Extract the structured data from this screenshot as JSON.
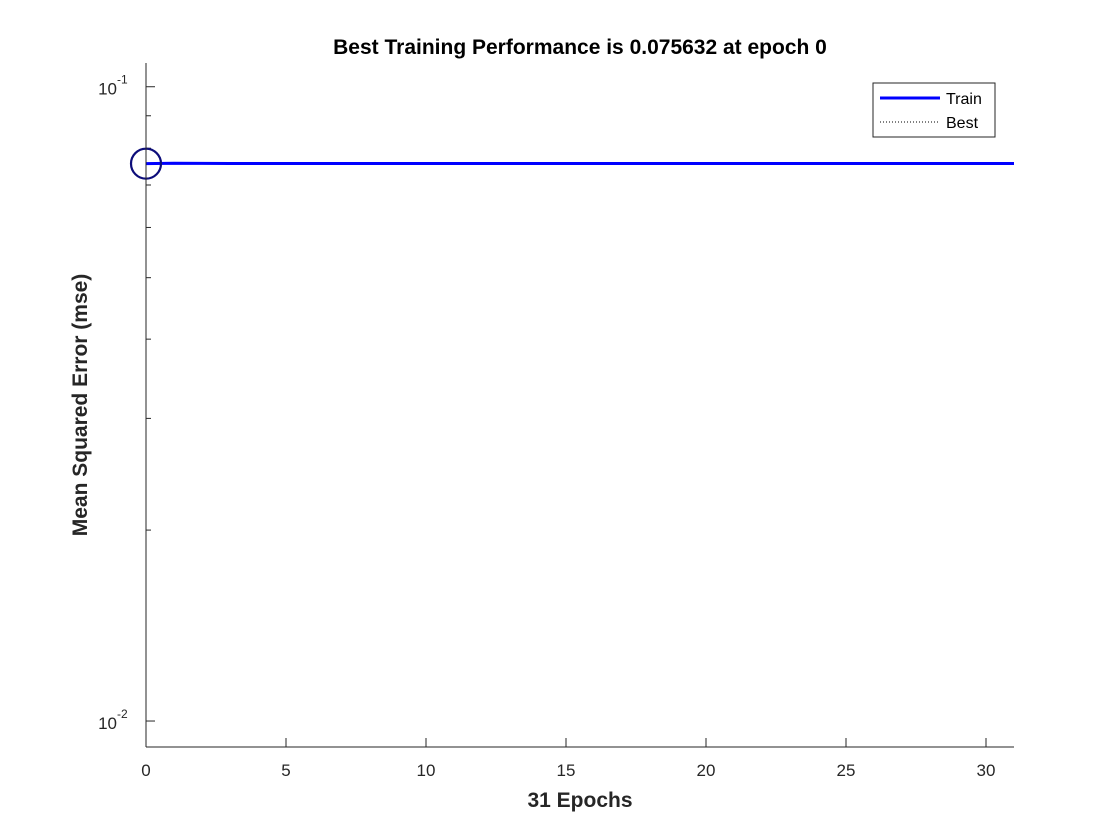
{
  "chart_data": {
    "type": "line",
    "title": "Best Training Performance is 0.075632 at epoch 0",
    "xlabel": "31 Epochs",
    "ylabel": "Mean Squared Error  (mse)",
    "xlim": [
      0,
      31
    ],
    "ylim": [
      0.0091,
      0.109
    ],
    "yscale": "log",
    "xticks": [
      0,
      5,
      10,
      15,
      20,
      25,
      30
    ],
    "xtick_labels": [
      "0",
      "5",
      "10",
      "15",
      "20",
      "25",
      "30"
    ],
    "yticks": [
      {
        "value": 0.1,
        "base": "10",
        "exp": "-1"
      },
      {
        "value": 0.01,
        "base": "10",
        "exp": "-2"
      }
    ],
    "grid": false,
    "legend_position": "top-right",
    "series": [
      {
        "name": "Train",
        "color": "#0000ff",
        "style": "solid",
        "x": [
          0,
          1,
          2,
          3,
          4,
          5,
          6,
          7,
          8,
          9,
          10,
          11,
          12,
          13,
          14,
          15,
          16,
          17,
          18,
          19,
          20,
          21,
          22,
          23,
          24,
          25,
          26,
          27,
          28,
          29,
          30,
          31
        ],
        "values": [
          0.075632,
          0.07575,
          0.0757,
          0.07568,
          0.07568,
          0.07568,
          0.07568,
          0.07568,
          0.07568,
          0.07568,
          0.07568,
          0.07568,
          0.07568,
          0.07568,
          0.07568,
          0.07568,
          0.07568,
          0.07568,
          0.07568,
          0.07568,
          0.07568,
          0.07568,
          0.07568,
          0.07568,
          0.07568,
          0.07568,
          0.07568,
          0.07568,
          0.07568,
          0.07568,
          0.07568,
          0.07568
        ]
      },
      {
        "name": "Best",
        "color": "#000000",
        "style": "dotted",
        "x": [
          0,
          0
        ],
        "values": [
          0.0091,
          0.109
        ]
      }
    ],
    "best_marker": {
      "x": 0,
      "y": 0.075632,
      "color": "#0d0d7a"
    }
  }
}
